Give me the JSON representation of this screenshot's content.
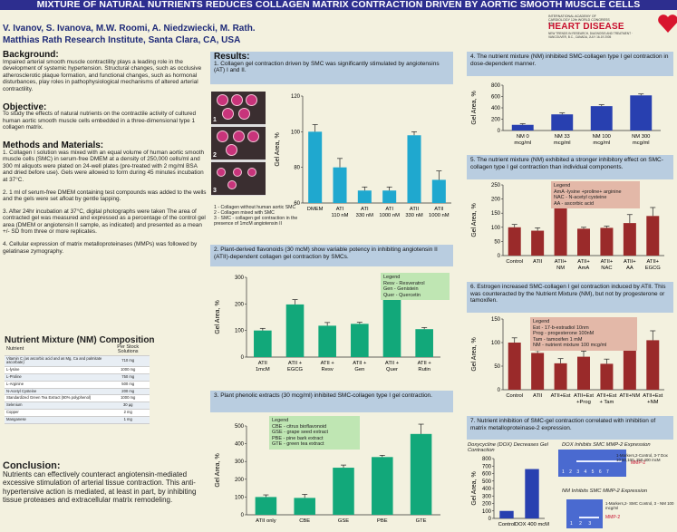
{
  "title": "MIXTURE OF NATURAL NUTRIENTS REDUCES COLLAGEN MATRIX CONTRACTION DRIVEN BY AORTIC SMOOTH MUSCLE CELLS",
  "authors": "V. Ivanov, S. Ivanova, M.W. Roomi, A. Niedzwiecki, M. Rath.",
  "institute": "Matthias Rath Research Institute, Santa Clara, CA, USA",
  "logo": {
    "top": "INTERNATIONAL ACADEMY OF CARDIOLOGY 12th WORLD CONGRESS ON",
    "main": "HEART DISEASE",
    "bottom": "NEW TRENDS IN RESEARCH, DIAGNOSIS AND TREATMENT · VANCOUVER, B.C., CANADA, JULY 16-19 2005"
  },
  "background": {
    "h": "Background:",
    "text": "Impaired arterial smooth muscle contractility plays a leading role in the development of systemic hypertension. Structural changes, such as occlusive atherosclerotic plaque formation, and functional changes, such as hormonal disturbances, play roles in pathophysiological mechanisms of altered arterial contractility."
  },
  "objective": {
    "h": "Objective:",
    "text": "To study the effects of natural nutrients on the contractile activity of cultured human aortic smooth muscle cells embedded in a three-dimensional type 1 collagen matrix."
  },
  "methods": {
    "h": "Methods and Materials:",
    "p1": "1. Collagen I solution was mixed with an equal volume of human aortic smooth muscle cells (SMC) in serum-free DMEM at a density of 250,000 cells/ml and 300 ml aliquots were plated on 24-well plates (pre-treated with 2 mg/ml BSA and dried before use). Gels were allowed to form during 45 minutes incubation at 37°C.",
    "p2": "2. 1 ml of serum-free DMEM containing test compounds was added to the wells and the gels were set afloat by gentle tapping.",
    "p3": "3. After 24hr incubation at 37°C, digital photographs were taken The area of contracted gel was measured and expressed as a percentage of the control gel area (DMEM or angiotensin II sample, as indicated) and presented as a mean +/- SD from three or more replicates.",
    "p4": "4. Cellular expression of matrix metalloproteinases (MMPs) was followed by gelatinase zymography."
  },
  "nm": {
    "h": "Nutrient Mixture (NM) Composition",
    "col1": "Nutrient",
    "col2": "Per Stock Solutions",
    "rows": [
      [
        "Vitamin C (as ascorbic acid and as Mg, Ca and palmitate ascorbate)",
        "710 mg"
      ],
      [
        "L-lysine",
        "1000 mg"
      ],
      [
        "L-Proline",
        "750 mg"
      ],
      [
        "L-Arginine",
        "500 mg"
      ],
      [
        "N-Acetyl Cysteine",
        "200 mg"
      ],
      [
        "Standardized Green Tea Extract (80% polyphenol)",
        "1000 mg"
      ],
      [
        "Selenium",
        "30 µg"
      ],
      [
        "Copper",
        "2 mg"
      ],
      [
        "Manganese",
        "1 mg"
      ]
    ]
  },
  "conclusion": {
    "h": "Conclusion:",
    "text": "Nutrients can effectively counteract angiotensin-mediated excessive stimulation of arterial tissue contraction. This anti-hypertensive action is mediated, at least in part, by inhibiting tissue proteases and extracellular matrix remodeling."
  },
  "results": {
    "h": "Results:",
    "r1": "1. Collagen gel contraction driven by SMC was significantly stimulated by angiotensins (AT) I and II.",
    "r2": "2. Plant-derived flavonoids (30 mcM) show variable potency in inhibiting angiotensin II (ATII)-dependent collagen gel contraction by SMCs.",
    "r3": "3. Plant phenolic extracts (30 mcg/ml) inhibited SMC-collagen type I gel contraction.",
    "r4": "4. The nutrient mixture (NM) inhibited SMC-collagen type I gel contraction in dose-dependent manner.",
    "r5": "5. The nutrient mixture (NM) exhibited a stronger inhibitory effect on SMC-collagen type I gel contraction than individual components.",
    "r6": "6. Estrogen increased SMC-collagen I gel contraction induced by ATII. This was counteracted by the Nutrient Mixture (NM), but not by progesterone or tamoxifen.",
    "r7": "7. Nutrient inhibition of SMC-gel contraction correlated with inhibition of matrix metalloproteinase-2 expression."
  },
  "photo_note": [
    "1 - Collagen without human aortic SMC",
    "2 - Collagen mixed with SMC",
    "3 - SMC - collagen gel contraction in the presence of 1mcM angiotensin II"
  ],
  "legend2": [
    "Legend",
    "Resv - Resveratrol",
    "Gen - Genistein",
    "Quer - Quercetin"
  ],
  "legend3": [
    "Legend",
    "CBE - citrus bioflavonoid",
    "GSE - grape seed extract",
    "PBE - pine bark extract",
    "GTE - green tea extract"
  ],
  "legend5": [
    "Legend",
    "AmA -lysine +proline+ arginine",
    "NAC - N-acetyl cysteine",
    "AA - ascorbic acid"
  ],
  "legend6": [
    "Legend",
    "Est - 17-b-estradiol 10nm",
    "Prog - progesterone 100nM",
    "Tam - tamoxifen 1 mM",
    "NM - nutrient mixture 100 mcg/ml"
  ],
  "dox": {
    "title": "Doxycycline (DOX) Decreases Gel Contraction",
    "mmp_title": "DOX Inhibits SMC MMP-2 Expression",
    "mmp_note": "1-Markers,2-Control, 3-7 Dox 10,50,100, 250,400 mcM",
    "mmp_label": "MMP-2",
    "nm_title": "NM Inhibits SMC MMP-2 Expression",
    "nm_note": "1-Markers,2- SMC Control, 3 - NM 100 mcg/ml",
    "lanes": "1  2  3  4  5  6  7",
    "lanes2": "1  2  3"
  },
  "chart_data": [
    {
      "id": "c1",
      "type": "bar",
      "ylabel": "Gel Area, %",
      "ylim": [
        60,
        120
      ],
      "ticks": [
        60,
        80,
        100,
        120
      ],
      "categories": [
        "DMEM",
        "ATI\n110 nM",
        "ATI\n330 nM",
        "ATI\n1000 nM",
        "ATII\n330 nM",
        "ATII\n1000 nM"
      ],
      "values": [
        100,
        80,
        67,
        67,
        98,
        73
      ],
      "errors": [
        4,
        5,
        2,
        2,
        2,
        5
      ],
      "color": "#1fa8cf"
    },
    {
      "id": "c2",
      "type": "bar",
      "ylabel": "Gel Area, %",
      "ylim": [
        0,
        300
      ],
      "ticks": [
        0,
        100,
        200,
        300
      ],
      "categories": [
        "ATII\n1mcM",
        "ATII +\nEGCG",
        "ATII +\nResv",
        "ATII +\nGen",
        "ATII +\nQuer",
        "ATII +\nRutin"
      ],
      "values": [
        100,
        198,
        118,
        125,
        220,
        105
      ],
      "errors": [
        8,
        18,
        12,
        6,
        22,
        6
      ],
      "color": "#12a87a"
    },
    {
      "id": "c3",
      "type": "bar",
      "ylabel": "Gel Area, %",
      "ylim": [
        0,
        500
      ],
      "ticks": [
        0,
        100,
        200,
        300,
        400,
        500
      ],
      "categories": [
        "ATII only",
        "CBE",
        "GSE",
        "PBE",
        "GTE"
      ],
      "values": [
        100,
        95,
        265,
        325,
        455
      ],
      "errors": [
        12,
        20,
        15,
        10,
        55
      ],
      "color": "#12a87a"
    },
    {
      "id": "c4",
      "type": "bar",
      "ylabel": "Gel Area, %",
      "ylim": [
        0,
        800
      ],
      "ticks": [
        0,
        200,
        400,
        600,
        800
      ],
      "categories": [
        "NM 0\nmcg/ml",
        "NM 33\nmcg/ml",
        "NM 100\nmcg/ml",
        "NM 300\nmcg/ml"
      ],
      "values": [
        100,
        285,
        430,
        620
      ],
      "errors": [
        20,
        25,
        25,
        25
      ],
      "color": "#2840b0"
    },
    {
      "id": "c5",
      "type": "bar",
      "ylabel": "Gel Area, %",
      "ylim": [
        0,
        250
      ],
      "ticks": [
        0,
        50,
        100,
        150,
        200,
        250
      ],
      "categories": [
        "Control",
        "ATII",
        "ATII+\nNM",
        "ATII+\nAmA",
        "ATII+\nNAC",
        "ATII+\nAA",
        "ATII+\nEGCG"
      ],
      "values": [
        100,
        88,
        210,
        95,
        98,
        115,
        140
      ],
      "errors": [
        10,
        10,
        20,
        5,
        6,
        30,
        30
      ],
      "color": "#9a2a2a"
    },
    {
      "id": "c6",
      "type": "bar",
      "ylabel": "Gel Area, %",
      "ylim": [
        0,
        150
      ],
      "ticks": [
        0,
        50,
        100,
        150
      ],
      "categories": [
        "Control",
        "ATII",
        "ATII+Est",
        "ATII+Est\n+Prog",
        "ATII+Est\n+ Tam",
        "ATII+NM",
        "ATII+Est\n+NM"
      ],
      "values": [
        100,
        78,
        56,
        70,
        55,
        130,
        105
      ],
      "errors": [
        10,
        5,
        10,
        12,
        10,
        10,
        20
      ],
      "color": "#9a2a2a"
    },
    {
      "id": "c7",
      "type": "bar",
      "ylabel": "Gel Area, %",
      "ylim": [
        0,
        800
      ],
      "ticks": [
        0,
        100,
        200,
        300,
        400,
        500,
        600,
        700,
        800
      ],
      "categories": [
        "Control",
        "DOX 400 mcM"
      ],
      "values": [
        100,
        660
      ],
      "errors": [
        0,
        0
      ],
      "color": "#2840b0"
    }
  ]
}
